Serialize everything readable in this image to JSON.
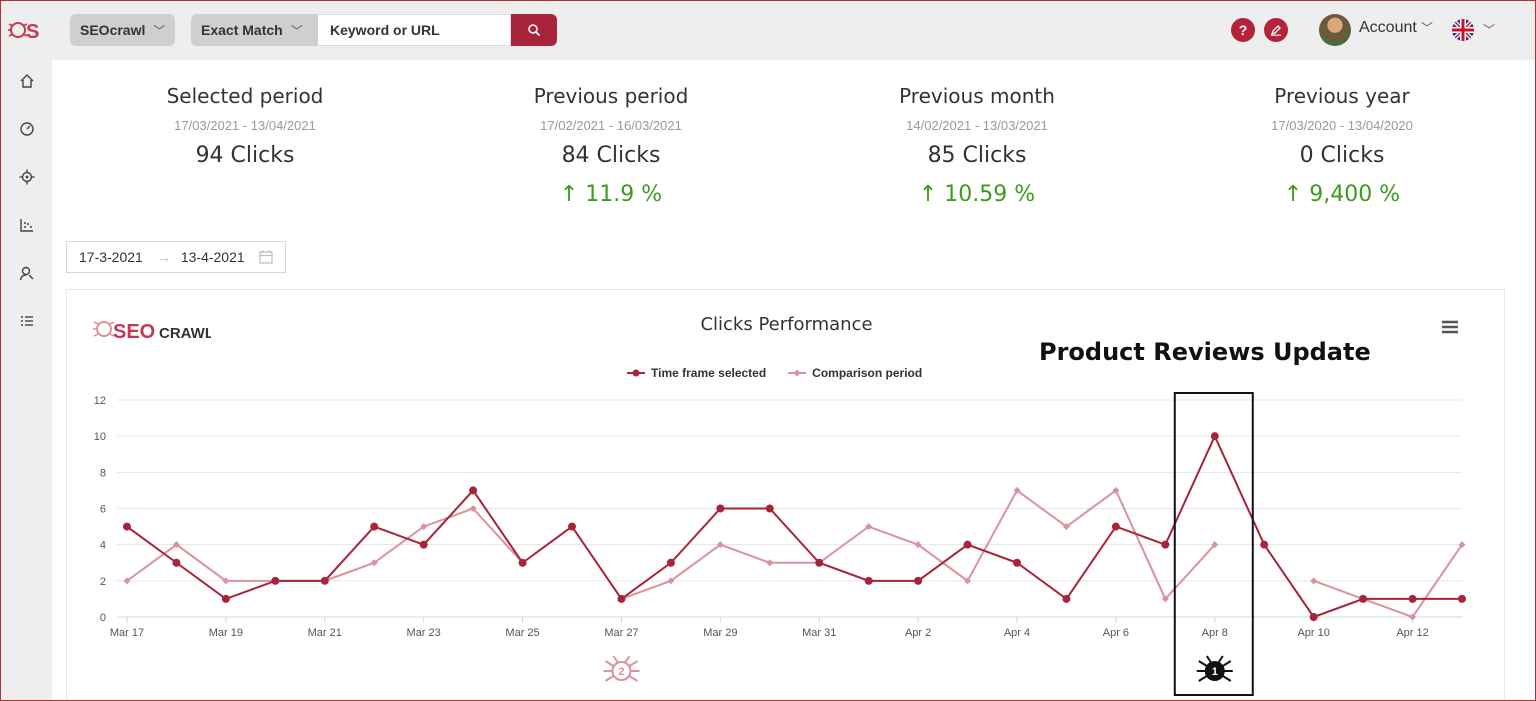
{
  "app": {
    "project_label": "SEOcrawl",
    "match_label": "Exact Match",
    "search_placeholder": "Keyword or URL",
    "help_label": "?",
    "account_label": "Account"
  },
  "sidebar": {
    "items": [
      {
        "icon": "home-icon"
      },
      {
        "icon": "dashboard-icon"
      },
      {
        "icon": "target-icon"
      },
      {
        "icon": "scatter-chart-icon"
      },
      {
        "icon": "search-users-icon"
      },
      {
        "icon": "list-icon"
      }
    ]
  },
  "stats": [
    {
      "title": "Selected period",
      "range": "17/03/2021 - 13/04/2021",
      "clicks": "94 Clicks",
      "change": ""
    },
    {
      "title": "Previous period",
      "range": "17/02/2021 - 16/03/2021",
      "clicks": "84 Clicks",
      "change": "↑ 11.9 %"
    },
    {
      "title": "Previous month",
      "range": "14/02/2021 - 13/03/2021",
      "clicks": "85 Clicks",
      "change": "↑ 10.59 %"
    },
    {
      "title": "Previous year",
      "range": "17/03/2020 - 13/04/2020",
      "clicks": "0 Clicks",
      "change": "↑ 9,400 %"
    }
  ],
  "daterange": {
    "start": "17-3-2021",
    "end": "13-4-2021",
    "arrow": "→"
  },
  "colors": {
    "primary": "#a8243a",
    "comparison": "#d9939c",
    "positive": "#3f9a1e"
  },
  "chart_data": {
    "type": "line",
    "title": "Clicks Performance",
    "annotation": "Product Reviews Update",
    "x": [
      "Mar 17",
      "Mar 18",
      "Mar 19",
      "Mar 20",
      "Mar 21",
      "Mar 22",
      "Mar 23",
      "Mar 24",
      "Mar 25",
      "Mar 26",
      "Mar 27",
      "Mar 28",
      "Mar 29",
      "Mar 30",
      "Mar 31",
      "Apr 1",
      "Apr 2",
      "Apr 3",
      "Apr 4",
      "Apr 5",
      "Apr 6",
      "Apr 7",
      "Apr 8",
      "Apr 9",
      "Apr 10",
      "Apr 11",
      "Apr 12",
      "Apr 13"
    ],
    "x_tick_labels": [
      "Mar 17",
      "Mar 19",
      "Mar 21",
      "Mar 23",
      "Mar 25",
      "Mar 27",
      "Mar 29",
      "Mar 31",
      "Apr 2",
      "Apr 4",
      "Apr 6",
      "Apr 8",
      "Apr 10",
      "Apr 12"
    ],
    "ylim": [
      0,
      12
    ],
    "y_ticks": [
      0,
      2,
      4,
      6,
      8,
      10,
      12
    ],
    "grid": true,
    "legend_position": "top-center",
    "series": [
      {
        "name": "Time frame selected",
        "marker": "circle",
        "values": [
          5,
          3,
          1,
          2,
          2,
          5,
          4,
          7,
          3,
          5,
          1,
          3,
          6,
          6,
          3,
          2,
          2,
          4,
          3,
          1,
          5,
          4,
          10,
          4,
          0,
          1,
          1,
          1
        ]
      },
      {
        "name": "Comparison period",
        "marker": "diamond",
        "values": [
          2,
          4,
          2,
          2,
          2,
          3,
          5,
          6,
          3,
          null,
          1,
          2,
          4,
          3,
          3,
          5,
          4,
          2,
          7,
          5,
          7,
          1,
          4,
          null,
          2,
          1,
          0,
          4
        ]
      }
    ],
    "event_markers": [
      {
        "x": "Mar 27",
        "label": "2",
        "icon": "crawler-bug-icon"
      },
      {
        "x": "Apr 8",
        "label": "1",
        "icon": "crawler-bug-icon",
        "highlighted": true
      }
    ]
  }
}
